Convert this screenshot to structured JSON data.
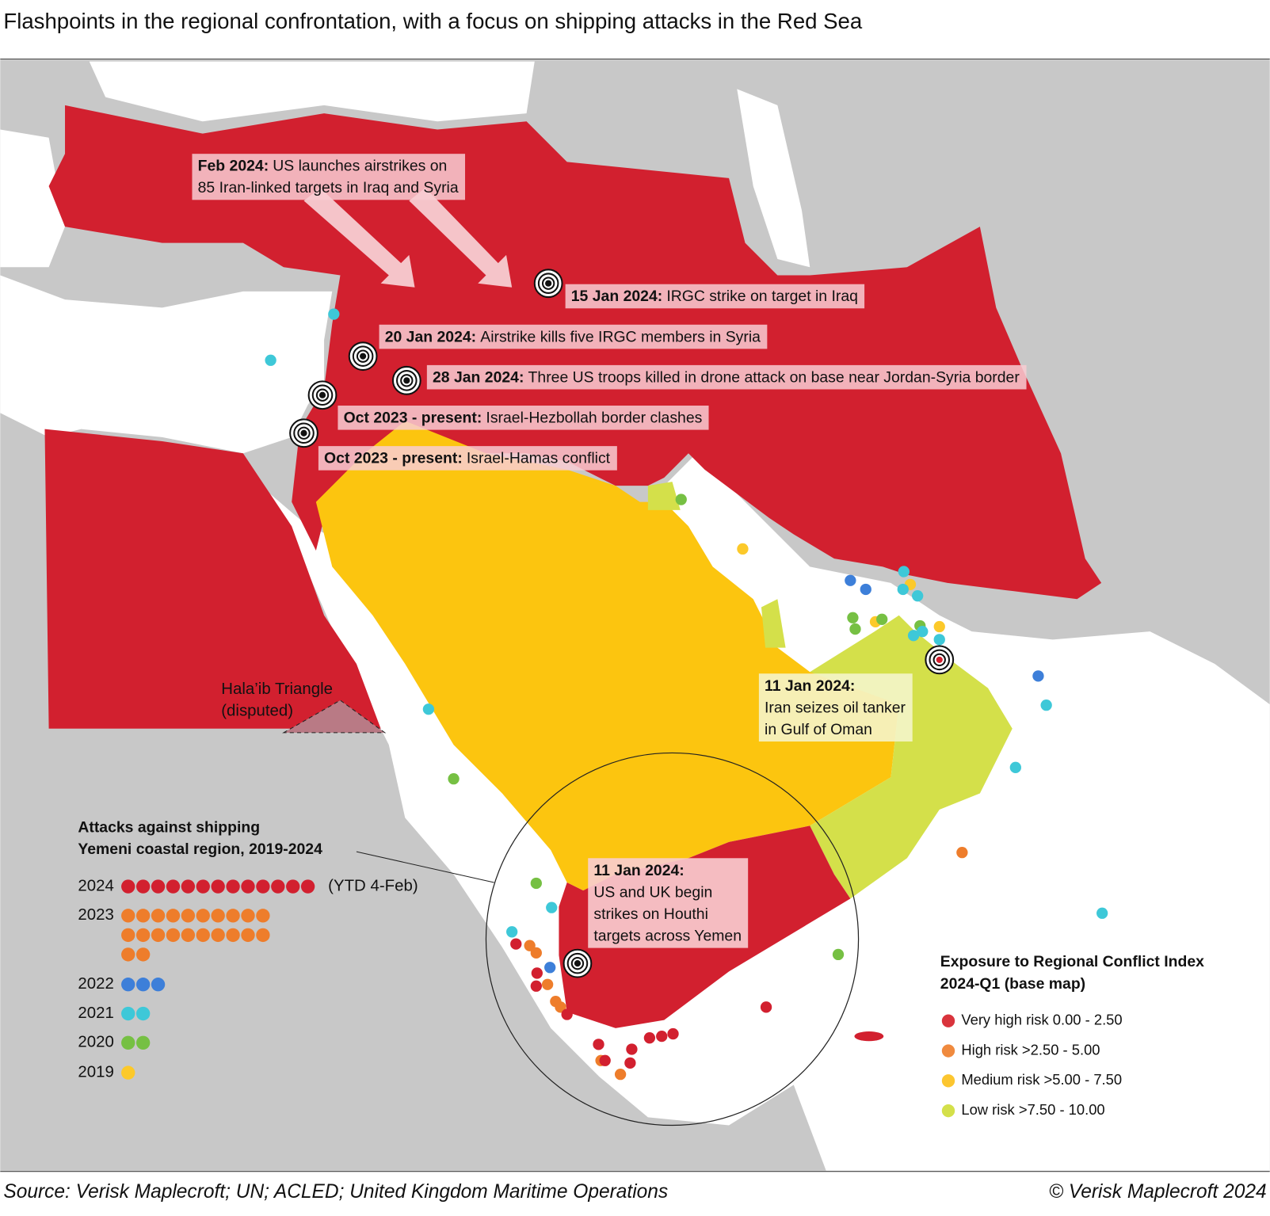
{
  "title": "Flashpoints in the regional confrontation, with a focus on shipping attacks in the Red Sea",
  "source": "Source: Verisk Maplecroft; UN; ACLED; United Kingdom Maritime Operations",
  "copyright": "© Verisk Maplecroft 2024",
  "annotations": [
    {
      "date": "Feb 2024:",
      "lines": [
        "US launches airstrikes on",
        "85 Iran-linked targets in Iraq and Syria"
      ]
    },
    {
      "date": "15 Jan 2024:",
      "lines": [
        "IRGC strike on target in Iraq"
      ]
    },
    {
      "date": "20 Jan 2024:",
      "lines": [
        "Airstrike kills five IRGC members in Syria"
      ]
    },
    {
      "date": "28 Jan 2024:",
      "lines": [
        "Three US troops killed in drone attack on base near Jordan-Syria border"
      ]
    },
    {
      "date": "Oct 2023 - present:",
      "lines": [
        "Israel-Hezbollah border clashes"
      ]
    },
    {
      "date": "Oct 2023 - present:",
      "lines": [
        "Israel-Hamas conflict"
      ]
    },
    {
      "date": "11 Jan 2024:",
      "lines": [
        "Iran seizes oil tanker",
        "in Gulf of Oman"
      ]
    },
    {
      "date": "11 Jan 2024:",
      "lines": [
        "US and UK begin",
        "strikes on Houthi",
        "targets across Yemen"
      ]
    }
  ],
  "map_label": [
    "Hala’ib Triangle",
    "(disputed)"
  ],
  "attacks_legend": {
    "title": [
      "Attacks against shipping",
      "Yemeni coastal region, 2019-2024"
    ],
    "years": [
      {
        "year": "2024",
        "count": 13,
        "color": "#d2202f",
        "note": "(YTD 4-Feb)"
      },
      {
        "year": "2023",
        "count": 22,
        "color": "#ee7d2b"
      },
      {
        "year": "2022",
        "count": 3,
        "color": "#3d7fd9"
      },
      {
        "year": "2021",
        "count": 2,
        "color": "#3ec8d8"
      },
      {
        "year": "2020",
        "count": 2,
        "color": "#76c043"
      },
      {
        "year": "2019",
        "count": 1,
        "color": "#fcc92a"
      }
    ]
  },
  "risk_legend": {
    "title": [
      "Exposure to Regional Conflict Index",
      "2024-Q1 (base map)"
    ],
    "items": [
      {
        "label": "Very high risk 0.00 - 2.50",
        "color": "#d9343c"
      },
      {
        "label": "High risk >2.50 - 5.00",
        "color": "#f08a3e"
      },
      {
        "label": "Medium risk >5.00 - 7.50",
        "color": "#fcc630"
      },
      {
        "label": "Low risk >7.50 - 10.00",
        "color": "#d4e04a"
      }
    ]
  }
}
